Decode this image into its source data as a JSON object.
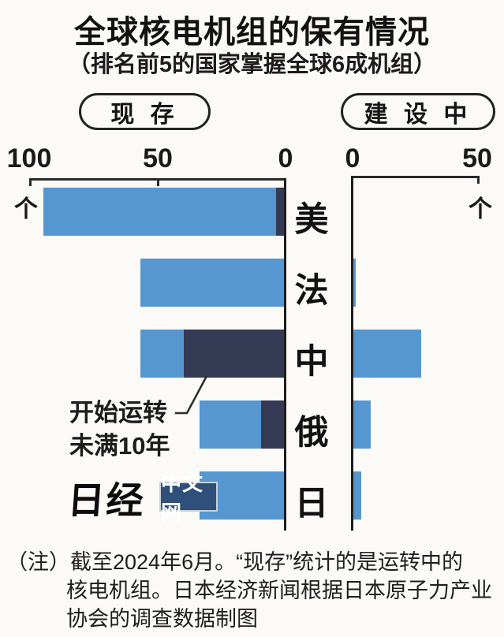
{
  "title": "全球核电机组的保有情况",
  "subtitle": "（排名前5的国家掌握全球6成机组）",
  "legend_pills": {
    "left": "现 存",
    "right": "建 设 中"
  },
  "unit_label": "个",
  "annotation": {
    "line1": "开始运转",
    "line2": "未满10年"
  },
  "logo": {
    "nikkei": "日经",
    "chinese_web": "中文网"
  },
  "note": {
    "line1": "（注）截至2024年6月。“现存”统计的是运转中的",
    "line2": "核电机组。日本经济新闻根据日本原子力产业",
    "line3": "协会的调查数据制图"
  },
  "colors": {
    "bar_blue": "#5697d0",
    "bar_navy": "#343a54",
    "logo_box": "#30507c"
  },
  "chart_data": {
    "type": "bar",
    "orientation": "horizontal",
    "categories": [
      "美",
      "法",
      "中",
      "俄",
      "日"
    ],
    "left_panel": {
      "title": "现存",
      "axis_ticks": [
        "100",
        "50",
        "0"
      ],
      "xlim": [
        0,
        100
      ],
      "direction": "right-to-left",
      "unit": "个",
      "series": [
        {
          "name": "现存（运转中）合计",
          "values": [
            94,
            56,
            56,
            33,
            33
          ]
        },
        {
          "name": "开始运转未满10年",
          "values": [
            3,
            0,
            39,
            9,
            0
          ]
        }
      ]
    },
    "right_panel": {
      "title": "建设中",
      "axis_ticks": [
        "0",
        "50"
      ],
      "xlim": [
        0,
        50
      ],
      "unit": "个",
      "values": [
        0,
        1,
        27,
        7,
        3
      ]
    }
  }
}
